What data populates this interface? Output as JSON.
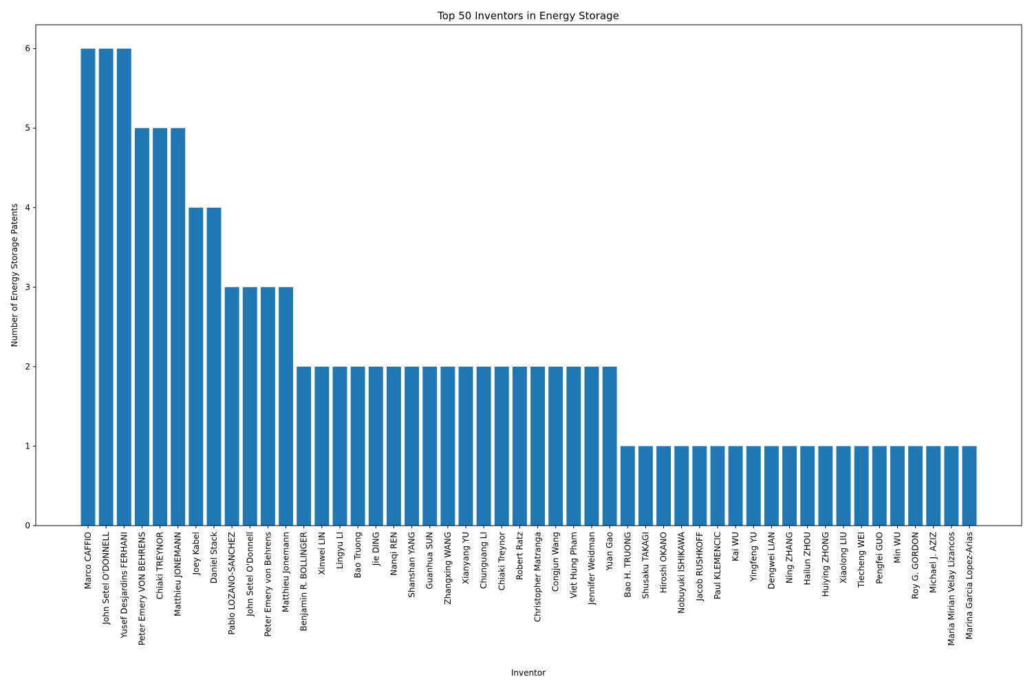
{
  "chart_data": {
    "type": "bar",
    "title": "Top 50 Inventors in Energy Storage",
    "xlabel": "Inventor",
    "ylabel": "Number of Energy Storage Patents",
    "ylim": [
      0,
      6.3
    ],
    "yticks": [
      0,
      1,
      2,
      3,
      4,
      5,
      6
    ],
    "grid": false,
    "bar_color": "#1f77b4",
    "categories": [
      "Marco CAFFIO",
      "John Setel O'DONNELL",
      "Yusef Desjardins FERHANI",
      "Peter Emery VON BEHRENS",
      "Chiaki TREYNOR",
      "Matthieu JONEMANN",
      "Joey Kabel",
      "Daniel Stack",
      "Pablo LOZANO-SANCHEZ",
      "John Setel O'Donnell",
      "Peter Emery von Behrens",
      "Matthieu Jonemann",
      "Benjamin R. BOLLINGER",
      "Xinwei LIN",
      "Lingyu LI",
      "Bao Truong",
      "Jie DING",
      "Nanqi REN",
      "Shanshan YANG",
      "Guanhua SUN",
      "Zhangxing WANG",
      "Xianyang YU",
      "Chunguang LI",
      "Chiaki Treynor",
      "Robert Ratz",
      "Christopher Matranga",
      "Congjun Wang",
      "Viet Hung Pham",
      "Jennifer Weidman",
      "Yuan Gao",
      "Bao H. TRUONG",
      "Shusaku TAKAGI",
      "Hiroshi OKANO",
      "Nobuyuki ISHIKAWA",
      "Jacob RUSHKOFF",
      "Paul KLEMENCIC",
      "Kai WU",
      "Yingfeng YU",
      "Dengwei LIAN",
      "Ning ZHANG",
      "Hailun ZHOU",
      "Huiying ZHONG",
      "Xiaolong LIU",
      "Tiecheng WEI",
      "Pengfei GUO",
      "Min WU",
      "Roy G. GORDON",
      "Michael J. AZIZ",
      "Maria Mirian Velay Lizancos",
      "Marina Garcia Lopez-Arias"
    ],
    "values": [
      6,
      6,
      6,
      5,
      5,
      5,
      4,
      4,
      3,
      3,
      3,
      3,
      2,
      2,
      2,
      2,
      2,
      2,
      2,
      2,
      2,
      2,
      2,
      2,
      2,
      2,
      2,
      2,
      2,
      2,
      1,
      1,
      1,
      1,
      1,
      1,
      1,
      1,
      1,
      1,
      1,
      1,
      1,
      1,
      1,
      1,
      1,
      1,
      1,
      1
    ]
  }
}
